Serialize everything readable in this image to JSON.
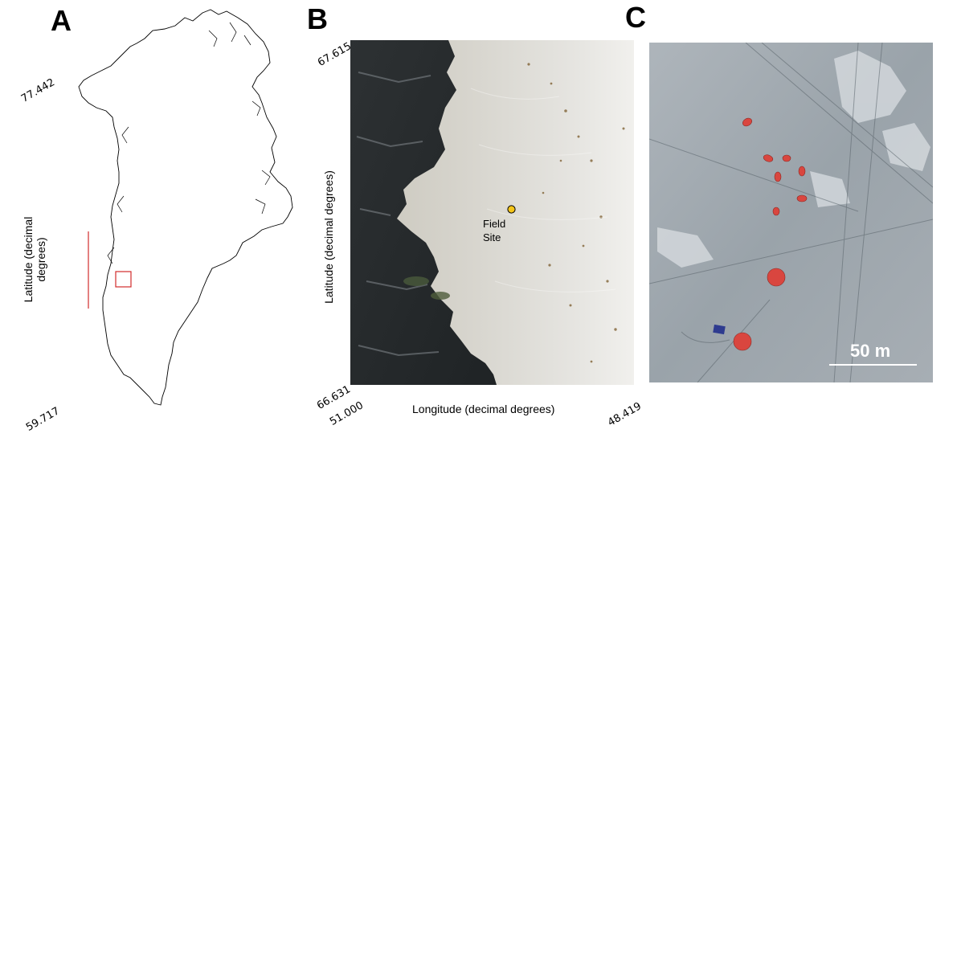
{
  "panels": {
    "a": {
      "letter": "A",
      "ylabel_line1": "Latitude (decimal",
      "ylabel_line2": "degrees)",
      "lat_top": "77.442",
      "lat_bottom": "59.717",
      "locator_color": "#d22b2b"
    },
    "b": {
      "letter": "B",
      "ylabel": "Latitude (decimal degrees)",
      "xlabel": "Longitude (decimal degrees)",
      "lat_top": "67.615",
      "lat_bottom": "66.631",
      "lon_left": "51.000",
      "lon_right": "48.419",
      "site_label_line1": "Field",
      "site_label_line2": "Site",
      "site_marker_color": "#f5c518"
    },
    "c": {
      "letter": "C",
      "scale_label": "50 m",
      "camp_color": "#d9463f"
    }
  }
}
